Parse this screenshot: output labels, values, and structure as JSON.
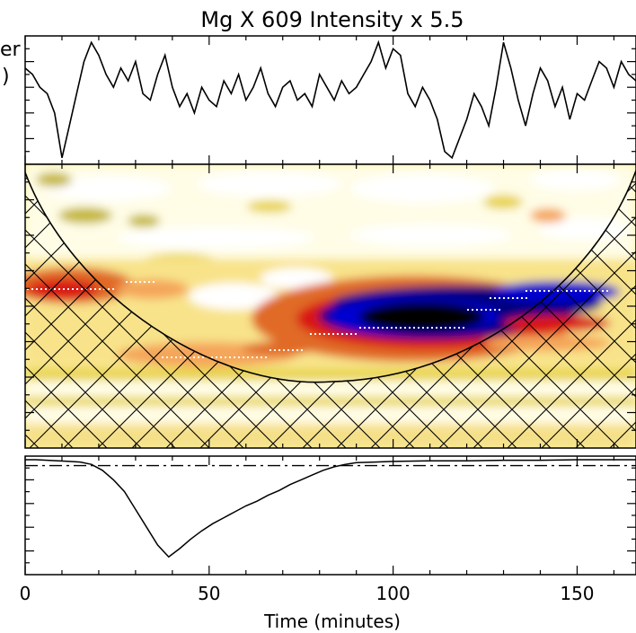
{
  "figure": {
    "title": "Mg X 609 Intensity x 5.5",
    "xlabel": "Time (minutes)",
    "ylabel_fragments": [
      "er",
      ")"
    ]
  },
  "chart_data": {
    "type": "line",
    "title": "Mg X 609 Intensity x 5.5",
    "xlabel": "Time (minutes)",
    "xlim": [
      0,
      166
    ],
    "x_ticks": [
      0,
      50,
      100,
      150
    ],
    "grid": false,
    "panels": [
      {
        "name": "light_curve",
        "type": "line",
        "x": [
          0,
          2,
          4,
          6,
          8,
          10,
          12,
          14,
          16,
          18,
          20,
          22,
          24,
          26,
          28,
          30,
          32,
          34,
          36,
          38,
          40,
          42,
          44,
          46,
          48,
          50,
          52,
          54,
          56,
          58,
          60,
          62,
          64,
          66,
          68,
          70,
          72,
          74,
          76,
          78,
          80,
          82,
          84,
          86,
          88,
          90,
          92,
          94,
          96,
          98,
          100,
          102,
          104,
          106,
          108,
          110,
          112,
          114,
          116,
          118,
          120,
          122,
          124,
          126,
          128,
          130,
          132,
          134,
          136,
          138,
          140,
          142,
          144,
          146,
          148,
          150,
          152,
          154,
          156,
          158,
          160,
          162,
          164,
          166
        ],
        "y": [
          0.75,
          0.7,
          0.6,
          0.55,
          0.4,
          0.05,
          0.3,
          0.55,
          0.8,
          0.95,
          0.85,
          0.7,
          0.6,
          0.75,
          0.65,
          0.8,
          0.55,
          0.5,
          0.7,
          0.85,
          0.6,
          0.45,
          0.55,
          0.4,
          0.6,
          0.5,
          0.45,
          0.65,
          0.55,
          0.7,
          0.5,
          0.6,
          0.75,
          0.55,
          0.45,
          0.6,
          0.65,
          0.5,
          0.55,
          0.45,
          0.7,
          0.6,
          0.5,
          0.65,
          0.55,
          0.6,
          0.7,
          0.8,
          0.95,
          0.75,
          0.9,
          0.85,
          0.55,
          0.45,
          0.6,
          0.5,
          0.35,
          0.1,
          0.05,
          0.2,
          0.35,
          0.55,
          0.45,
          0.3,
          0.6,
          0.95,
          0.75,
          0.5,
          0.3,
          0.55,
          0.75,
          0.65,
          0.45,
          0.6,
          0.35,
          0.55,
          0.5,
          0.65,
          0.8,
          0.75,
          0.6,
          0.8,
          0.7,
          0.65
        ]
      },
      {
        "name": "wavelet_power",
        "type": "heatmap",
        "colormap": [
          "#ffffff",
          "#fdf3a6",
          "#e8d34c",
          "#c5b733",
          "#f4a65a",
          "#e06a28",
          "#d91414",
          "#000080",
          "#0000d0",
          "#000000"
        ],
        "cone_of_influence": true,
        "hatch": "cross"
      },
      {
        "name": "global_wavelet",
        "type": "line",
        "x": [
          0,
          3,
          6,
          9,
          12,
          15,
          18,
          21,
          24,
          27,
          30,
          33,
          36,
          39,
          42,
          45,
          48,
          51,
          54,
          57,
          60,
          63,
          66,
          69,
          72,
          75,
          78,
          81,
          84,
          87,
          90,
          95,
          100,
          110,
          120,
          130,
          140,
          150,
          160,
          166
        ],
        "y": [
          0.97,
          0.97,
          0.965,
          0.96,
          0.955,
          0.95,
          0.93,
          0.88,
          0.8,
          0.7,
          0.55,
          0.4,
          0.25,
          0.15,
          0.22,
          0.3,
          0.37,
          0.43,
          0.48,
          0.53,
          0.58,
          0.62,
          0.67,
          0.71,
          0.76,
          0.8,
          0.84,
          0.88,
          0.91,
          0.93,
          0.945,
          0.95,
          0.955,
          0.96,
          0.96,
          0.965,
          0.965,
          0.97,
          0.97,
          0.97
        ],
        "significance_level": 0.92
      }
    ]
  }
}
